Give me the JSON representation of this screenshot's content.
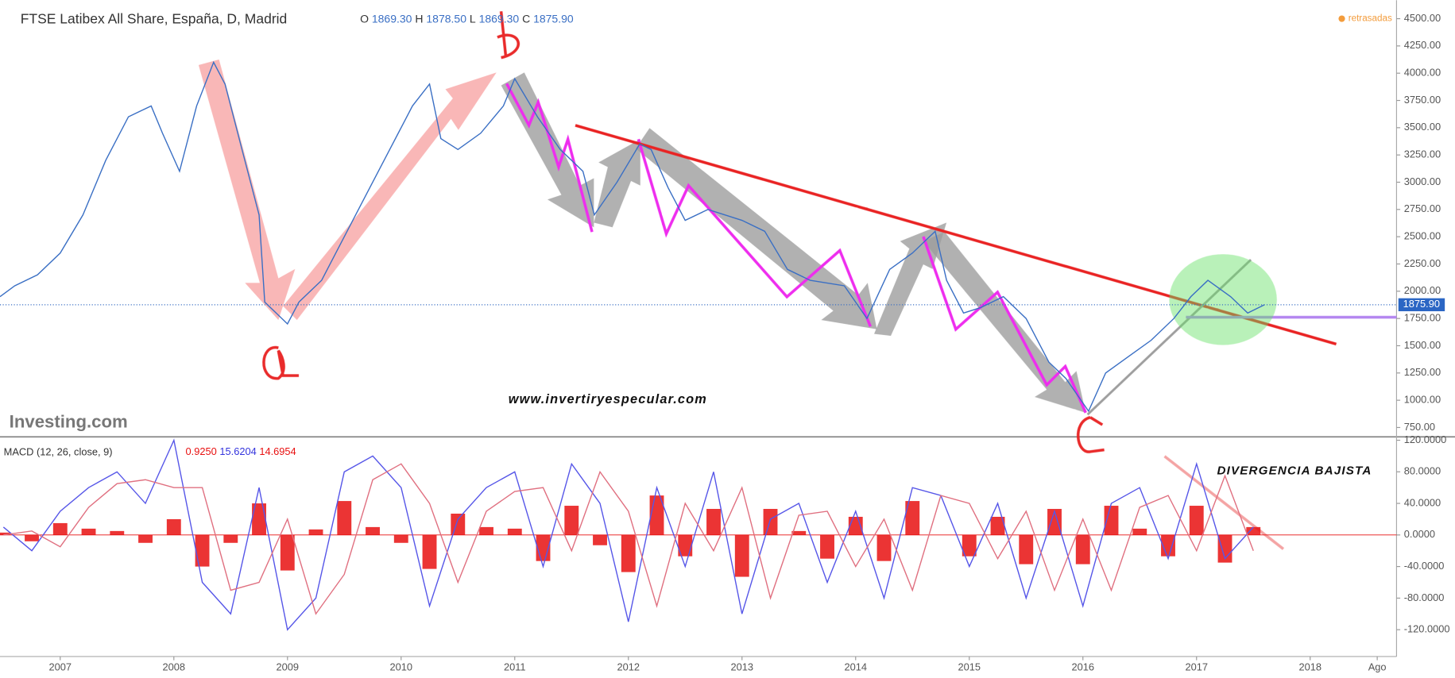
{
  "chart_data": [
    {
      "type": "line",
      "title": "FTSE Latibex All Share, España, D, Madrid",
      "ohlc": [
        "O",
        "1869.30",
        "H",
        "1878.50",
        "L",
        "1869.30",
        "C",
        "1875.90"
      ],
      "status": "retrasadas",
      "watermark": "Investing.com",
      "annotations": [
        "www.invertiryespecular.com"
      ],
      "color": "#3a6fc4",
      "x": [
        2006.47,
        2006.6,
        2006.8,
        2007.0,
        2007.2,
        2007.4,
        2007.6,
        2007.8,
        2007.9,
        2008.05,
        2008.2,
        2008.35,
        2008.45,
        2008.6,
        2008.75,
        2008.8,
        2008.9,
        2009.0,
        2009.1,
        2009.3,
        2009.5,
        2009.7,
        2009.9,
        2010.1,
        2010.25,
        2010.35,
        2010.5,
        2010.7,
        2010.9,
        2011.0,
        2011.2,
        2011.4,
        2011.6,
        2011.7,
        2011.9,
        2012.1,
        2012.2,
        2012.35,
        2012.5,
        2012.7,
        2013.0,
        2013.2,
        2013.4,
        2013.6,
        2013.9,
        2014.1,
        2014.3,
        2014.5,
        2014.7,
        2014.8,
        2014.95,
        2015.1,
        2015.3,
        2015.5,
        2015.7,
        2015.85,
        2016.05,
        2016.2,
        2016.4,
        2016.6,
        2016.8,
        2016.95,
        2017.1,
        2017.3,
        2017.45,
        2017.6
      ],
      "values": [
        1950,
        2050,
        2150,
        2350,
        2700,
        3200,
        3600,
        3700,
        3450,
        3100,
        3700,
        4100,
        3900,
        3300,
        2700,
        1900,
        1800,
        1700,
        1900,
        2100,
        2500,
        2900,
        3300,
        3700,
        3900,
        3400,
        3300,
        3450,
        3700,
        3950,
        3600,
        3300,
        3100,
        2700,
        3000,
        3350,
        3300,
        2950,
        2650,
        2750,
        2650,
        2550,
        2200,
        2100,
        2050,
        1750,
        2200,
        2350,
        2550,
        2100,
        1800,
        1850,
        1950,
        1750,
        1350,
        1200,
        900,
        1250,
        1400,
        1550,
        1750,
        1950,
        2100,
        1950,
        1800,
        1876
      ],
      "last_value": {
        "value": 1875.9,
        "label": "1875.90"
      },
      "xlim": [
        2006.47,
        2018.76
      ],
      "ylim": [
        673,
        4670
      ],
      "yticks": [
        {
          "value": 4500,
          "label": "4500.00"
        },
        {
          "value": 4250,
          "label": "4250.00"
        },
        {
          "value": 4000,
          "label": "4000.00"
        },
        {
          "value": 3750,
          "label": "3750.00"
        },
        {
          "value": 3500,
          "label": "3500.00"
        },
        {
          "value": 3250,
          "label": "3250.00"
        },
        {
          "value": 3000,
          "label": "3000.00"
        },
        {
          "value": 2750,
          "label": "2750.00"
        },
        {
          "value": 2500,
          "label": "2500.00"
        },
        {
          "value": 2250,
          "label": "2250.00"
        },
        {
          "value": 2000,
          "label": "2000.00"
        },
        {
          "value": 1750,
          "label": "1750.00"
        },
        {
          "value": 1500,
          "label": "1500.00"
        },
        {
          "value": 1250,
          "label": "1250.00"
        },
        {
          "value": 1000,
          "label": "1000.00"
        },
        {
          "value": 750,
          "label": "750.00"
        }
      ],
      "grid": false
    },
    {
      "type": "macd",
      "title": "MACD (12, 26, close, 9)",
      "readings": [
        "0.9250",
        "15.6204",
        "14.6954"
      ],
      "annotations": [
        "DIVERGENCIA BAJISTA"
      ],
      "x": [
        2006.5,
        2006.75,
        2007.0,
        2007.25,
        2007.5,
        2007.75,
        2008.0,
        2008.25,
        2008.5,
        2008.75,
        2009.0,
        2009.25,
        2009.5,
        2009.75,
        2010.0,
        2010.25,
        2010.5,
        2010.75,
        2011.0,
        2011.25,
        2011.5,
        2011.75,
        2012.0,
        2012.25,
        2012.5,
        2012.75,
        2013.0,
        2013.25,
        2013.5,
        2013.75,
        2014.0,
        2014.25,
        2014.5,
        2014.75,
        2015.0,
        2015.25,
        2015.5,
        2015.75,
        2016.0,
        2016.25,
        2016.5,
        2016.75,
        2017.0,
        2017.25,
        2017.5
      ],
      "series": [
        {
          "color": "#5656e8",
          "values": [
            10,
            -20,
            30,
            60,
            80,
            40,
            120,
            -60,
            -100,
            60,
            -120,
            -80,
            80,
            100,
            60,
            -90,
            20,
            60,
            80,
            -40,
            90,
            40,
            -110,
            60,
            -40,
            80,
            -100,
            20,
            40,
            -60,
            30,
            -80,
            60,
            50,
            -40,
            40,
            -80,
            30,
            -90,
            40,
            60,
            -30,
            90,
            -30,
            10
          ]
        },
        {
          "color": "#e07080",
          "values": [
            0,
            5,
            -15,
            35,
            65,
            70,
            60,
            60,
            -70,
            -60,
            20,
            -100,
            -50,
            70,
            90,
            40,
            -60,
            30,
            55,
            60,
            -20,
            80,
            30,
            -90,
            40,
            -20,
            60,
            -80,
            25,
            30,
            -40,
            20,
            -70,
            50,
            40,
            -30,
            30,
            -70,
            20,
            -70,
            35,
            50,
            -20,
            75,
            -20
          ]
        }
      ],
      "histogram": {
        "color": "#e81010",
        "values": [
          3,
          -8,
          15,
          8,
          5,
          -10,
          20,
          -40,
          -10,
          40,
          -45,
          7,
          43,
          10,
          -10,
          -43,
          27,
          10,
          8,
          -33,
          37,
          -13,
          -47,
          50,
          -27,
          33,
          -53,
          33,
          5,
          -30,
          23,
          -33,
          43,
          0,
          -27,
          23,
          -37,
          33,
          -37,
          37,
          8,
          -27,
          37,
          -35,
          10
        ]
      },
      "xlim": [
        2006.47,
        2018.76
      ],
      "xticks": [
        2007,
        2008,
        2009,
        2010,
        2011,
        2012,
        2013,
        2014,
        2015,
        2016,
        2017,
        2018,
        {
          "value": 2018.59,
          "label": "Ago"
        }
      ],
      "ylim": [
        -154,
        122
      ],
      "yticks": [
        {
          "value": 120,
          "label": "120.0000"
        },
        {
          "value": 80,
          "label": "80.0000"
        },
        {
          "value": 40,
          "label": "40.0000"
        },
        {
          "value": 0,
          "label": "0.0000"
        },
        {
          "value": -40,
          "label": "-40.0000"
        },
        {
          "value": -80,
          "label": "-80.0000"
        },
        {
          "value": -120,
          "label": "-120.0000"
        }
      ],
      "grid": false
    }
  ]
}
